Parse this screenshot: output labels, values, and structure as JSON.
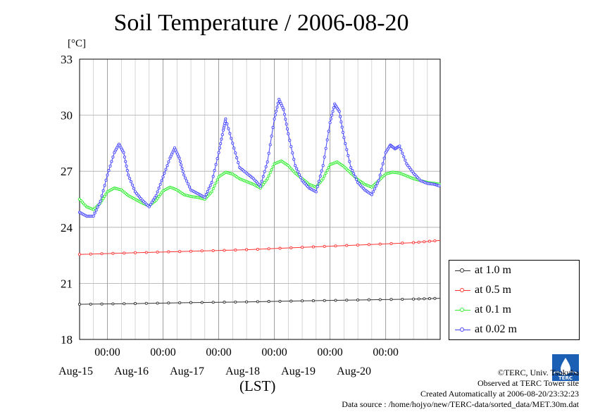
{
  "chart_data": {
    "type": "line",
    "title": "Soil Temperature / 2006-08-20",
    "ylabel": "[°C]",
    "xlabel": "(LST)",
    "ylim": [
      18,
      33
    ],
    "yticks": [
      "18",
      "21",
      "24",
      "27",
      "30",
      "33"
    ],
    "xlim": [
      "2006-08-14T12:00",
      "2006-08-20T23:30"
    ],
    "xticks": [
      {
        "time": "2006-08-15T00:00",
        "label": "00:00",
        "date": "Aug-15"
      },
      {
        "time": "2006-08-16T00:00",
        "label": "00:00",
        "date": "Aug-16"
      },
      {
        "time": "2006-08-17T00:00",
        "label": "00:00",
        "date": "Aug-17"
      },
      {
        "time": "2006-08-18T00:00",
        "label": "00:00",
        "date": "Aug-18"
      },
      {
        "time": "2006-08-19T00:00",
        "label": "00:00",
        "date": "Aug-19"
      },
      {
        "time": "2006-08-20T00:00",
        "label": "00:00",
        "date": "Aug-20"
      }
    ],
    "grid": true,
    "legend_position": "right",
    "series": [
      {
        "name": "at 1.0 m",
        "color": "#333333",
        "points": [
          [
            "2006-08-14T12:00",
            19.88
          ],
          [
            "2006-08-15T12:00",
            19.92
          ],
          [
            "2006-08-16T12:00",
            19.97
          ],
          [
            "2006-08-17T12:00",
            20.01
          ],
          [
            "2006-08-18T12:00",
            20.06
          ],
          [
            "2006-08-19T12:00",
            20.11
          ],
          [
            "2006-08-20T12:00",
            20.16
          ],
          [
            "2006-08-20T23:30",
            20.2
          ]
        ]
      },
      {
        "name": "at 0.5 m",
        "color": "#ff3333",
        "points": [
          [
            "2006-08-14T12:00",
            22.55
          ],
          [
            "2006-08-15T12:00",
            22.64
          ],
          [
            "2006-08-16T12:00",
            22.72
          ],
          [
            "2006-08-17T12:00",
            22.8
          ],
          [
            "2006-08-18T12:00",
            22.93
          ],
          [
            "2006-08-19T12:00",
            23.05
          ],
          [
            "2006-08-20T12:00",
            23.18
          ],
          [
            "2006-08-20T23:30",
            23.3
          ]
        ]
      },
      {
        "name": "at 0.1 m",
        "color": "#33ee33",
        "points": [
          [
            "2006-08-14T12:00",
            25.5
          ],
          [
            "2006-08-14T15:00",
            25.1
          ],
          [
            "2006-08-14T18:00",
            24.95
          ],
          [
            "2006-08-14T21:00",
            25.3
          ],
          [
            "2006-08-15T00:00",
            25.9
          ],
          [
            "2006-08-15T03:00",
            26.1
          ],
          [
            "2006-08-15T06:00",
            26.0
          ],
          [
            "2006-08-15T09:00",
            25.7
          ],
          [
            "2006-08-15T12:00",
            25.5
          ],
          [
            "2006-08-15T15:00",
            25.3
          ],
          [
            "2006-08-15T18:00",
            25.15
          ],
          [
            "2006-08-15T21:00",
            25.45
          ],
          [
            "2006-08-16T00:00",
            25.95
          ],
          [
            "2006-08-16T03:00",
            26.15
          ],
          [
            "2006-08-16T06:00",
            26.0
          ],
          [
            "2006-08-16T09:00",
            25.75
          ],
          [
            "2006-08-16T12:00",
            25.65
          ],
          [
            "2006-08-16T15:00",
            25.6
          ],
          [
            "2006-08-16T18:00",
            25.5
          ],
          [
            "2006-08-16T21:00",
            25.9
          ],
          [
            "2006-08-17T00:00",
            26.7
          ],
          [
            "2006-08-17T03:00",
            26.95
          ],
          [
            "2006-08-17T06:00",
            26.85
          ],
          [
            "2006-08-17T09:00",
            26.6
          ],
          [
            "2006-08-17T12:00",
            26.45
          ],
          [
            "2006-08-17T15:00",
            26.3
          ],
          [
            "2006-08-17T18:00",
            26.1
          ],
          [
            "2006-08-17T21:00",
            26.6
          ],
          [
            "2006-08-18T00:00",
            27.4
          ],
          [
            "2006-08-18T03:00",
            27.55
          ],
          [
            "2006-08-18T06:00",
            27.3
          ],
          [
            "2006-08-18T09:00",
            26.9
          ],
          [
            "2006-08-18T12:00",
            26.6
          ],
          [
            "2006-08-18T15:00",
            26.3
          ],
          [
            "2006-08-18T18:00",
            26.15
          ],
          [
            "2006-08-18T21:00",
            26.6
          ],
          [
            "2006-08-19T00:00",
            27.35
          ],
          [
            "2006-08-19T03:00",
            27.5
          ],
          [
            "2006-08-19T06:00",
            27.25
          ],
          [
            "2006-08-19T09:00",
            26.9
          ],
          [
            "2006-08-19T12:00",
            26.55
          ],
          [
            "2006-08-19T15:00",
            26.3
          ],
          [
            "2006-08-19T18:00",
            26.15
          ],
          [
            "2006-08-19T21:00",
            26.5
          ],
          [
            "2006-08-20T00:00",
            26.85
          ],
          [
            "2006-08-20T03:00",
            26.95
          ],
          [
            "2006-08-20T06:00",
            26.9
          ],
          [
            "2006-08-20T09:00",
            26.75
          ],
          [
            "2006-08-20T12:00",
            26.6
          ],
          [
            "2006-08-20T15:00",
            26.5
          ],
          [
            "2006-08-20T18:00",
            26.4
          ],
          [
            "2006-08-20T21:00",
            26.35
          ],
          [
            "2006-08-20T23:30",
            26.3
          ]
        ]
      },
      {
        "name": "at 0.02 m",
        "color": "#4444ff",
        "points": [
          [
            "2006-08-14T12:00",
            24.8
          ],
          [
            "2006-08-14T15:00",
            24.6
          ],
          [
            "2006-08-14T18:00",
            24.6
          ],
          [
            "2006-08-14T21:00",
            25.4
          ],
          [
            "2006-08-15T00:00",
            26.8
          ],
          [
            "2006-08-15T03:00",
            28.0
          ],
          [
            "2006-08-15T05:00",
            28.45
          ],
          [
            "2006-08-15T07:00",
            28.0
          ],
          [
            "2006-08-15T09:00",
            26.8
          ],
          [
            "2006-08-15T12:00",
            25.9
          ],
          [
            "2006-08-15T15:00",
            25.45
          ],
          [
            "2006-08-15T18:00",
            25.1
          ],
          [
            "2006-08-15T21:00",
            25.7
          ],
          [
            "2006-08-16T00:00",
            26.7
          ],
          [
            "2006-08-16T03:00",
            27.7
          ],
          [
            "2006-08-16T05:00",
            28.25
          ],
          [
            "2006-08-16T07:00",
            27.7
          ],
          [
            "2006-08-16T09:00",
            26.8
          ],
          [
            "2006-08-16T12:00",
            26.0
          ],
          [
            "2006-08-16T15:00",
            25.8
          ],
          [
            "2006-08-16T18:00",
            25.6
          ],
          [
            "2006-08-16T21:00",
            26.4
          ],
          [
            "2006-08-17T00:00",
            28.0
          ],
          [
            "2006-08-17T02:00",
            29.2
          ],
          [
            "2006-08-17T03:00",
            29.8
          ],
          [
            "2006-08-17T06:00",
            28.5
          ],
          [
            "2006-08-17T09:00",
            27.2
          ],
          [
            "2006-08-17T12:00",
            26.9
          ],
          [
            "2006-08-17T15:00",
            26.6
          ],
          [
            "2006-08-17T18:00",
            26.2
          ],
          [
            "2006-08-17T21:00",
            27.5
          ],
          [
            "2006-08-18T00:00",
            29.8
          ],
          [
            "2006-08-18T02:00",
            30.85
          ],
          [
            "2006-08-18T04:00",
            30.3
          ],
          [
            "2006-08-18T06:00",
            29.0
          ],
          [
            "2006-08-18T09:00",
            27.3
          ],
          [
            "2006-08-18T12:00",
            26.5
          ],
          [
            "2006-08-18T15:00",
            26.1
          ],
          [
            "2006-08-18T18:00",
            25.9
          ],
          [
            "2006-08-18T21:00",
            27.3
          ],
          [
            "2006-08-19T00:00",
            29.6
          ],
          [
            "2006-08-19T02:00",
            30.6
          ],
          [
            "2006-08-19T04:00",
            30.2
          ],
          [
            "2006-08-19T06:00",
            28.8
          ],
          [
            "2006-08-19T09:00",
            27.2
          ],
          [
            "2006-08-19T12:00",
            26.4
          ],
          [
            "2006-08-19T15:00",
            26.0
          ],
          [
            "2006-08-19T18:00",
            25.75
          ],
          [
            "2006-08-19T21:00",
            26.5
          ],
          [
            "2006-08-20T00:00",
            28.0
          ],
          [
            "2006-08-20T02:00",
            28.4
          ],
          [
            "2006-08-20T04:00",
            28.2
          ],
          [
            "2006-08-20T06:00",
            28.35
          ],
          [
            "2006-08-20T09:00",
            27.4
          ],
          [
            "2006-08-20T12:00",
            26.9
          ],
          [
            "2006-08-20T15:00",
            26.5
          ],
          [
            "2006-08-20T18:00",
            26.35
          ],
          [
            "2006-08-20T21:00",
            26.3
          ],
          [
            "2006-08-20T23:30",
            26.2
          ]
        ]
      }
    ]
  },
  "credits": {
    "copyright": "©TERC, Univ. Tsukuba",
    "observed": "Observed at TERC Tower site",
    "created": "Created Automatically at 2006-08-20/23:32:23",
    "source": "Data source : /home/hojyo/new/TERC-data/sorted_data/MET.30m.dat"
  },
  "logo": {
    "text": "TERC",
    "color": "#1a5fb4"
  }
}
